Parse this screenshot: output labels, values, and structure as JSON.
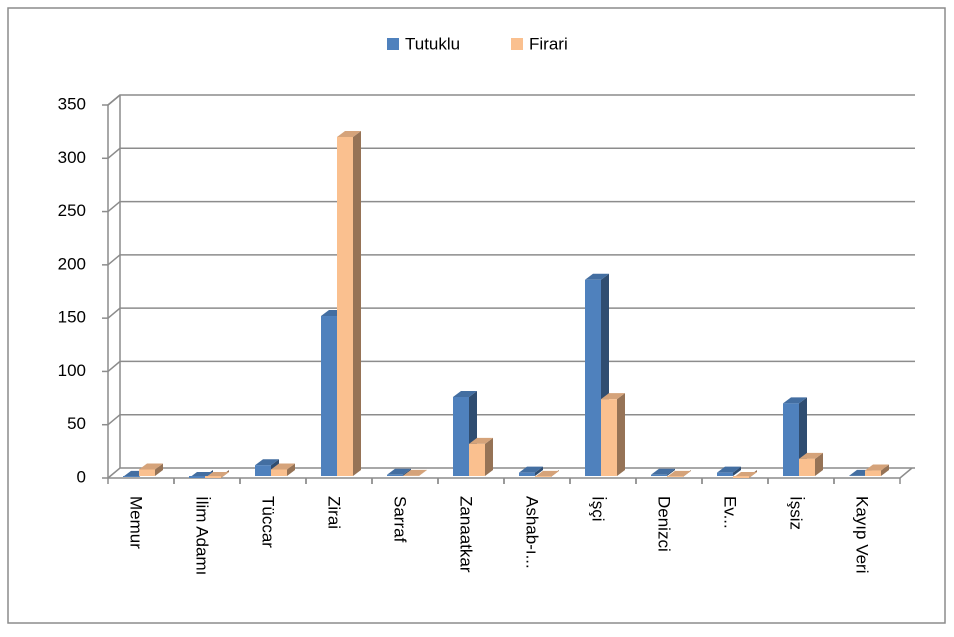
{
  "chart_data": {
    "type": "bar3d",
    "categories": [
      "Memur",
      "İlim Adamı",
      "Tüccar",
      "Zirai",
      "Sarraf",
      "Zanaatkar",
      "Ashab-ı...",
      "İşçi",
      "Denizci",
      "Ev...",
      "İşsiz",
      "Kayıp Veri"
    ],
    "series": [
      {
        "name": "Tutuklu",
        "color": "#4f81bd",
        "values": [
          1,
          0,
          12,
          152,
          3,
          76,
          5,
          186,
          3,
          5,
          70,
          2
        ]
      },
      {
        "name": "Firari",
        "color": "#fac08f",
        "values": [
          8,
          0,
          8,
          320,
          2,
          32,
          1,
          74,
          1,
          0,
          18,
          7
        ]
      }
    ],
    "ylim": [
      0,
      350
    ],
    "yticks": [
      0,
      50,
      100,
      150,
      200,
      250,
      300,
      350
    ],
    "grid": true,
    "legend": "top"
  }
}
